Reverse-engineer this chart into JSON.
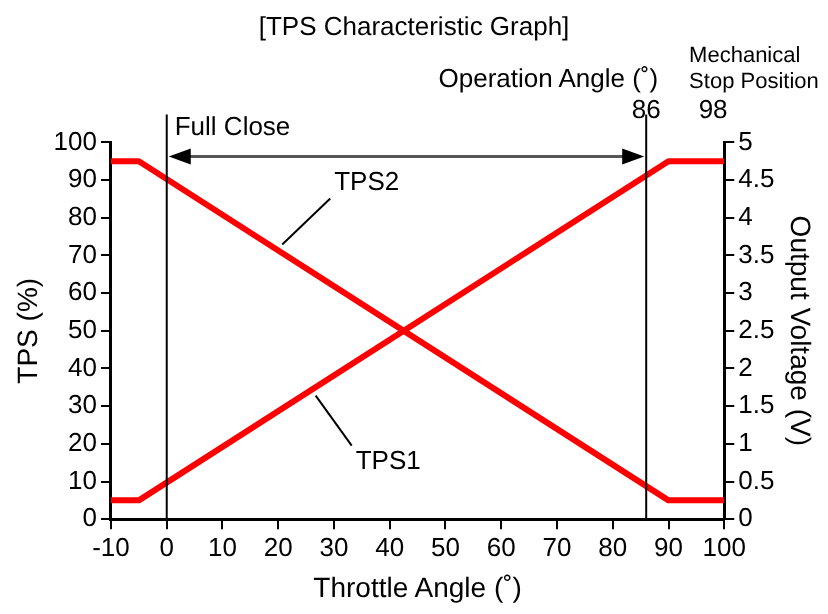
{
  "chart_data": {
    "type": "line",
    "title": "[TPS Characteristic Graph]",
    "xlabel": "Throttle Angle (˚)",
    "ylabel": "TPS (%)",
    "y2label": "Output Voltage (V)",
    "series": [
      {
        "name": "TPS1",
        "color": "#ff0000",
        "x": [
          -10,
          -5,
          90,
          100
        ],
        "values": [
          5,
          5,
          95,
          95
        ]
      },
      {
        "name": "TPS2",
        "color": "#ff0000",
        "x": [
          -10,
          -5,
          90,
          100
        ],
        "values": [
          95,
          95,
          5,
          5
        ]
      }
    ],
    "xlim": [
      -10,
      100
    ],
    "xticks": [
      -10,
      0,
      10,
      20,
      30,
      40,
      50,
      60,
      70,
      80,
      90,
      100
    ],
    "x2lim": [
      -10,
      100
    ],
    "x2ticks": [
      86,
      98
    ],
    "ylim": [
      0,
      100
    ],
    "yticks": [
      0,
      10,
      20,
      30,
      40,
      50,
      60,
      70,
      80,
      90,
      100
    ],
    "y2lim": [
      0,
      5
    ],
    "y2ticks": [
      0,
      0.5,
      1,
      1.5,
      2,
      2.5,
      3,
      3.5,
      4,
      4.5,
      5
    ],
    "ref_lines": [
      {
        "axis": "x",
        "value": 0,
        "color": "#000000"
      },
      {
        "axis": "x",
        "value": 86,
        "color": "#000000"
      }
    ],
    "annotations": [
      {
        "text": "Full Close",
        "x": 0
      },
      "Operation Angle (˚)",
      "Mechanical Stop Position"
    ],
    "grid": false,
    "legend": false,
    "marker": "none",
    "line_style": "solid"
  }
}
